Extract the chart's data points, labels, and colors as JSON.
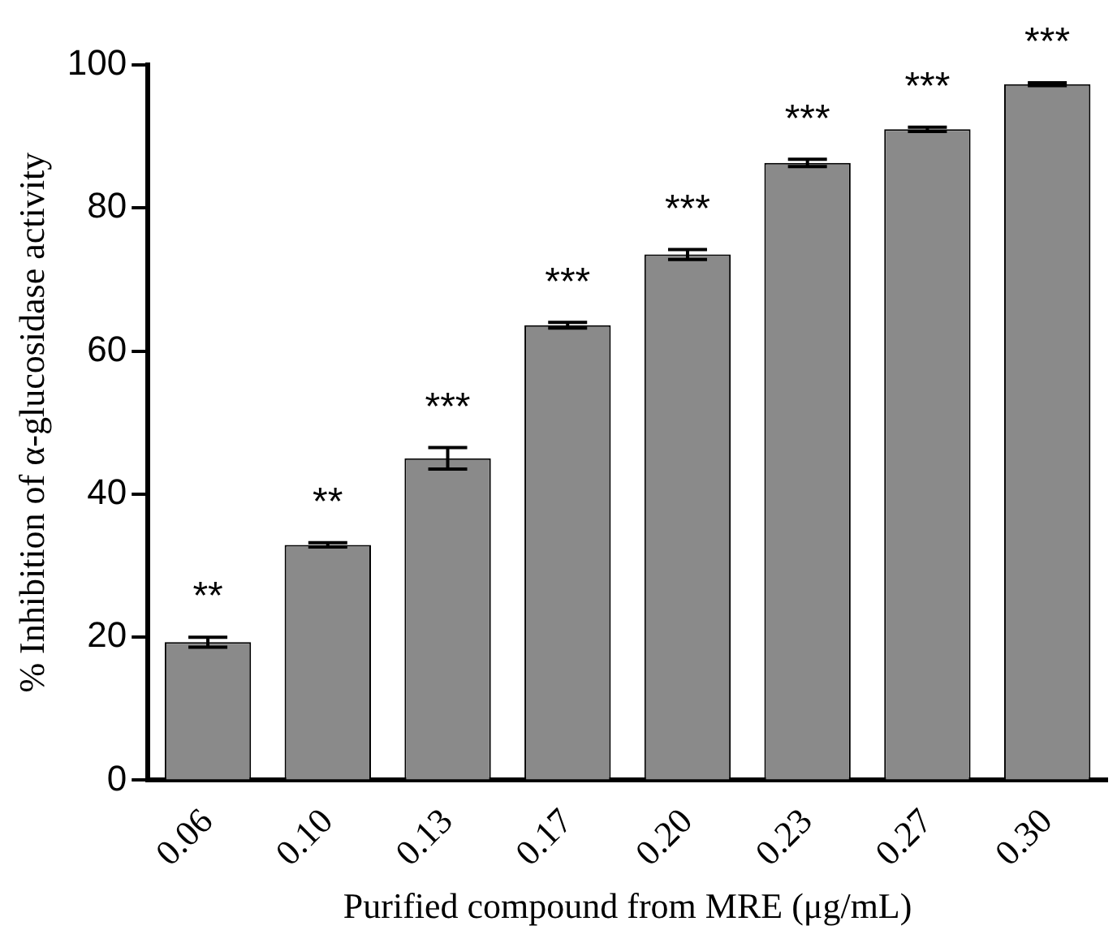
{
  "chart_data": {
    "type": "bar",
    "xlabel": "Purified compound from MRE (μg/mL)",
    "ylabel": "% Inhibition of α-glucosidase activity",
    "categories": [
      "0.06",
      "0.10",
      "0.13",
      "0.17",
      "0.20",
      "0.23",
      "0.27",
      "0.30"
    ],
    "values": [
      19.3,
      32.9,
      45.0,
      63.6,
      73.5,
      86.3,
      91.0,
      97.3
    ],
    "errors": [
      0.7,
      0.3,
      1.5,
      0.4,
      0.7,
      0.5,
      0.3,
      0.2
    ],
    "color": "#8a8a8a",
    "ylim": [
      0,
      100
    ],
    "yticks": [
      0,
      20,
      40,
      60,
      80,
      100
    ],
    "grid": false,
    "legend": false,
    "annotations": [
      {
        "text": "**",
        "x": "0.06",
        "y": 19.3
      },
      {
        "text": "**",
        "x": "0.10",
        "y": 32.9
      },
      {
        "text": "***",
        "x": "0.13",
        "y": 45.0
      },
      {
        "text": "***",
        "x": "0.17",
        "y": 63.6
      },
      {
        "text": "***",
        "x": "0.20",
        "y": 73.5
      },
      {
        "text": "***",
        "x": "0.23",
        "y": 86.3
      },
      {
        "text": "***",
        "x": "0.27",
        "y": 91.0
      },
      {
        "text": "***",
        "x": "0.30",
        "y": 97.3
      }
    ]
  }
}
